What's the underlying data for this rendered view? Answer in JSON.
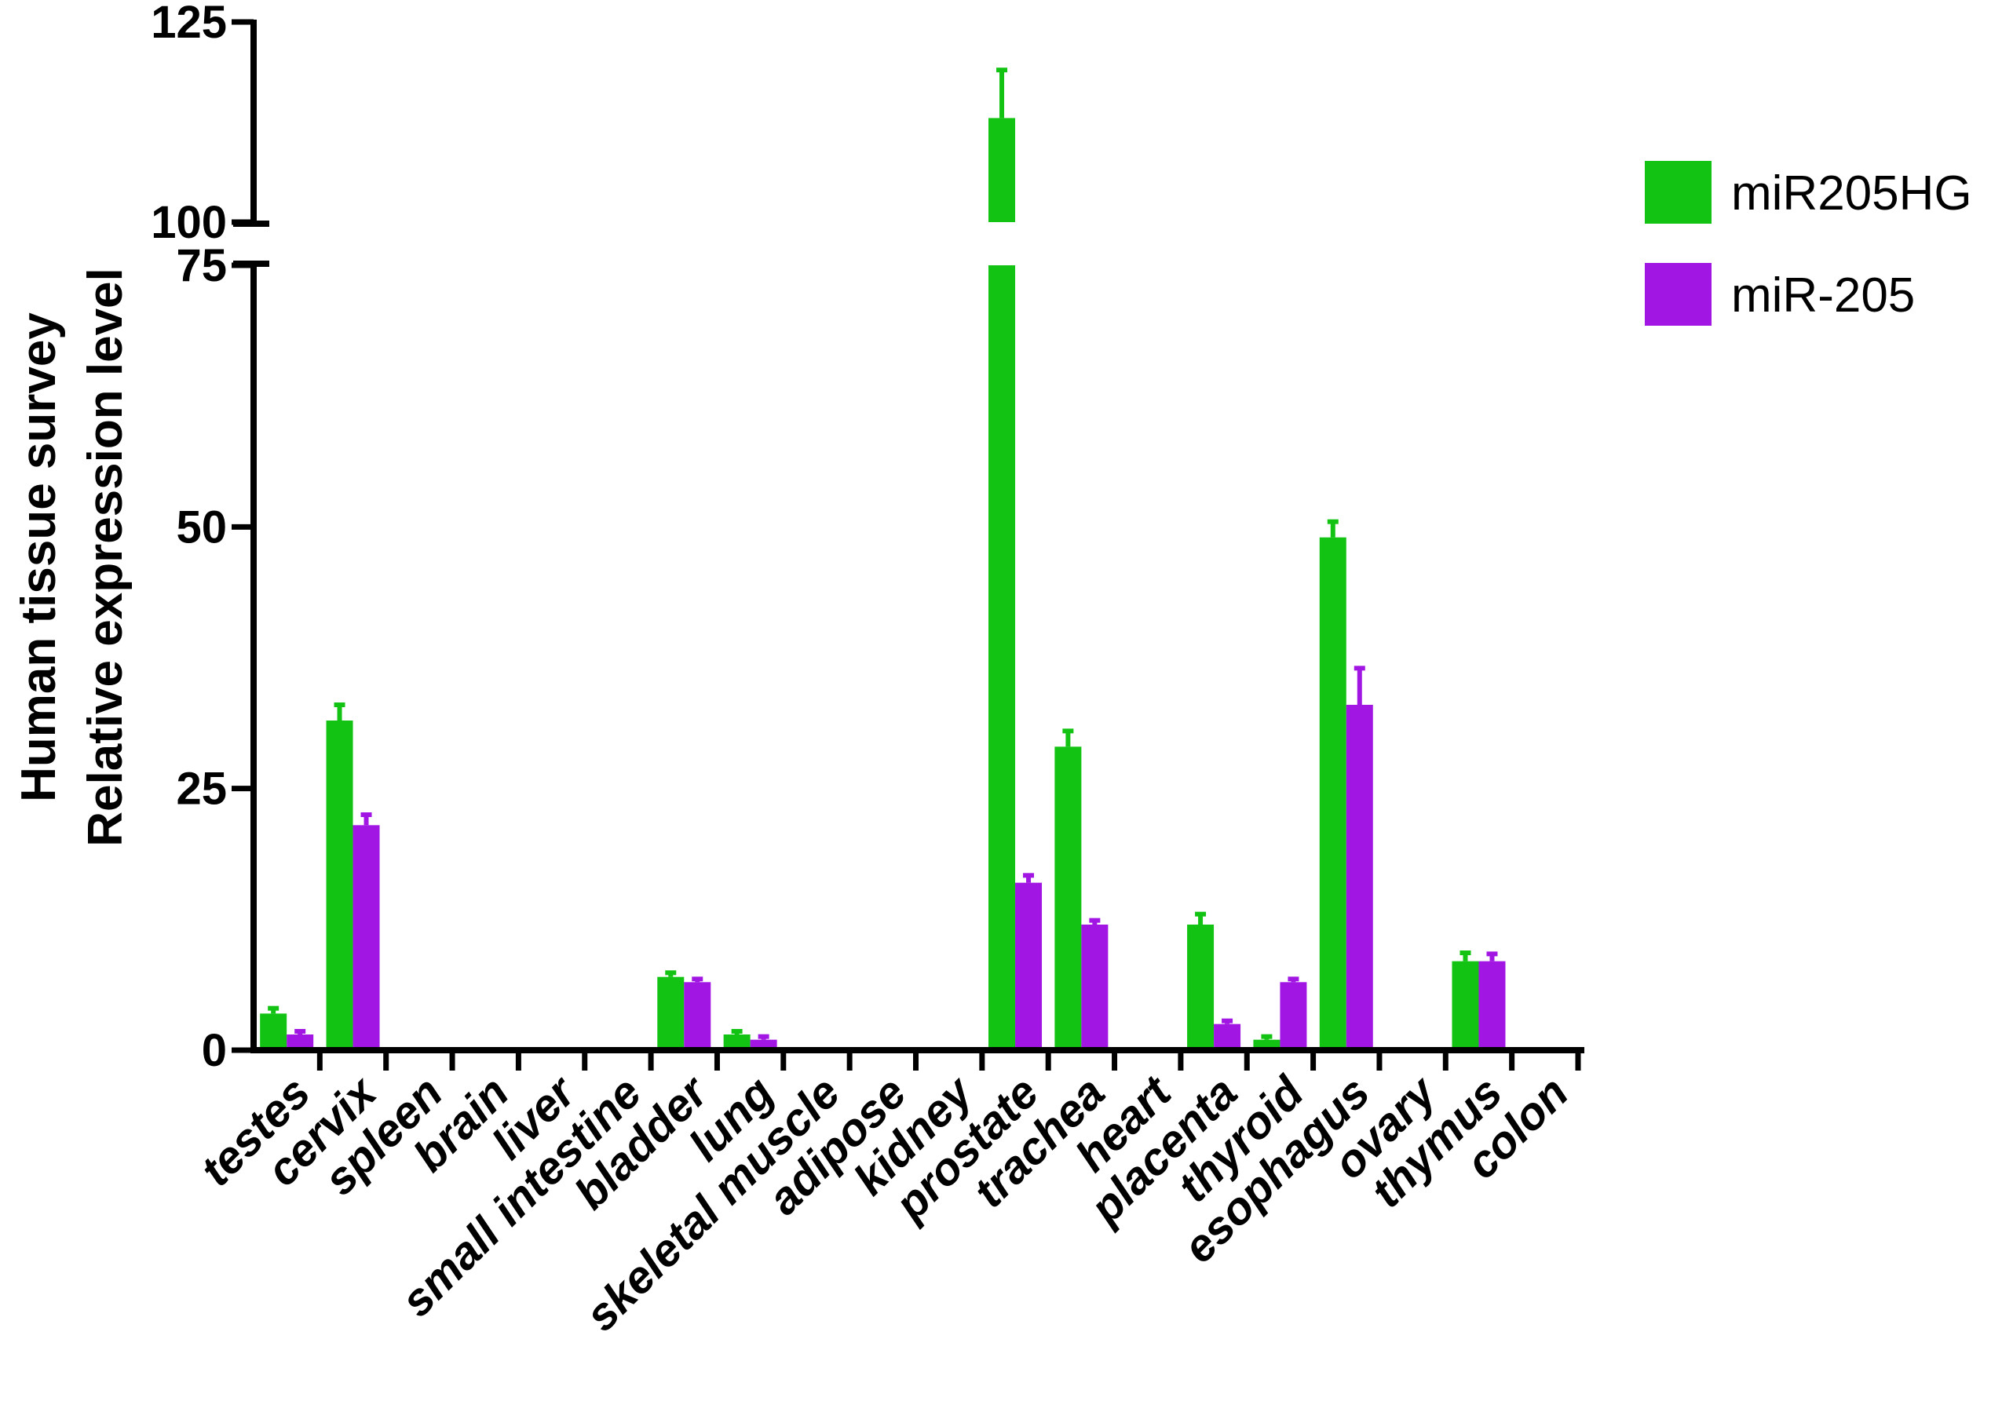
{
  "chart_data": {
    "type": "bar",
    "title": "",
    "ylabel_lines": [
      "Human  tissue survey",
      "Relative expression level"
    ],
    "xlabel": "",
    "categories": [
      "testes",
      "cervix",
      "spleen",
      "brain",
      "liver",
      "small intestine",
      "bladder",
      "lung",
      "skeletal muscle",
      "adipose",
      "kidney",
      "prostate",
      "trachea",
      "heart",
      "placenta",
      "thyroid",
      "esophagus",
      "ovary",
      "thymus",
      "colon"
    ],
    "series": [
      {
        "name": "miR205HG",
        "color": "#13c313",
        "values": [
          3.5,
          31.5,
          0,
          0,
          0,
          0,
          7,
          1.5,
          0,
          0,
          0,
          113,
          29,
          0,
          12,
          1,
          49,
          0,
          8.5,
          0
        ],
        "errors": [
          0.5,
          1.5,
          0,
          0,
          0,
          0,
          0.4,
          0.3,
          0,
          0,
          0,
          6,
          1.5,
          0,
          1,
          0.3,
          1.5,
          0,
          0.8,
          0
        ]
      },
      {
        "name": "miR-205",
        "color": "#a116e3",
        "values": [
          1.5,
          21.5,
          0,
          0,
          0,
          0,
          6.5,
          1,
          0,
          0,
          0,
          16,
          12,
          0,
          2.5,
          6.5,
          33,
          0,
          8.5,
          0
        ],
        "errors": [
          0.3,
          1,
          0,
          0,
          0,
          0,
          0.3,
          0.3,
          0,
          0,
          0,
          0.7,
          0.4,
          0,
          0.3,
          0.3,
          3.5,
          0,
          0.7,
          0
        ]
      }
    ],
    "y_axis": {
      "lower_segment": [
        0,
        75
      ],
      "upper_segment": [
        100,
        125
      ],
      "broken": true,
      "ticks": [
        "0",
        "25",
        "50",
        "75",
        "100",
        "125"
      ]
    },
    "legend": {
      "placement": "top-right",
      "entries": [
        "miR205HG",
        "miR-205"
      ]
    },
    "grid": false
  }
}
